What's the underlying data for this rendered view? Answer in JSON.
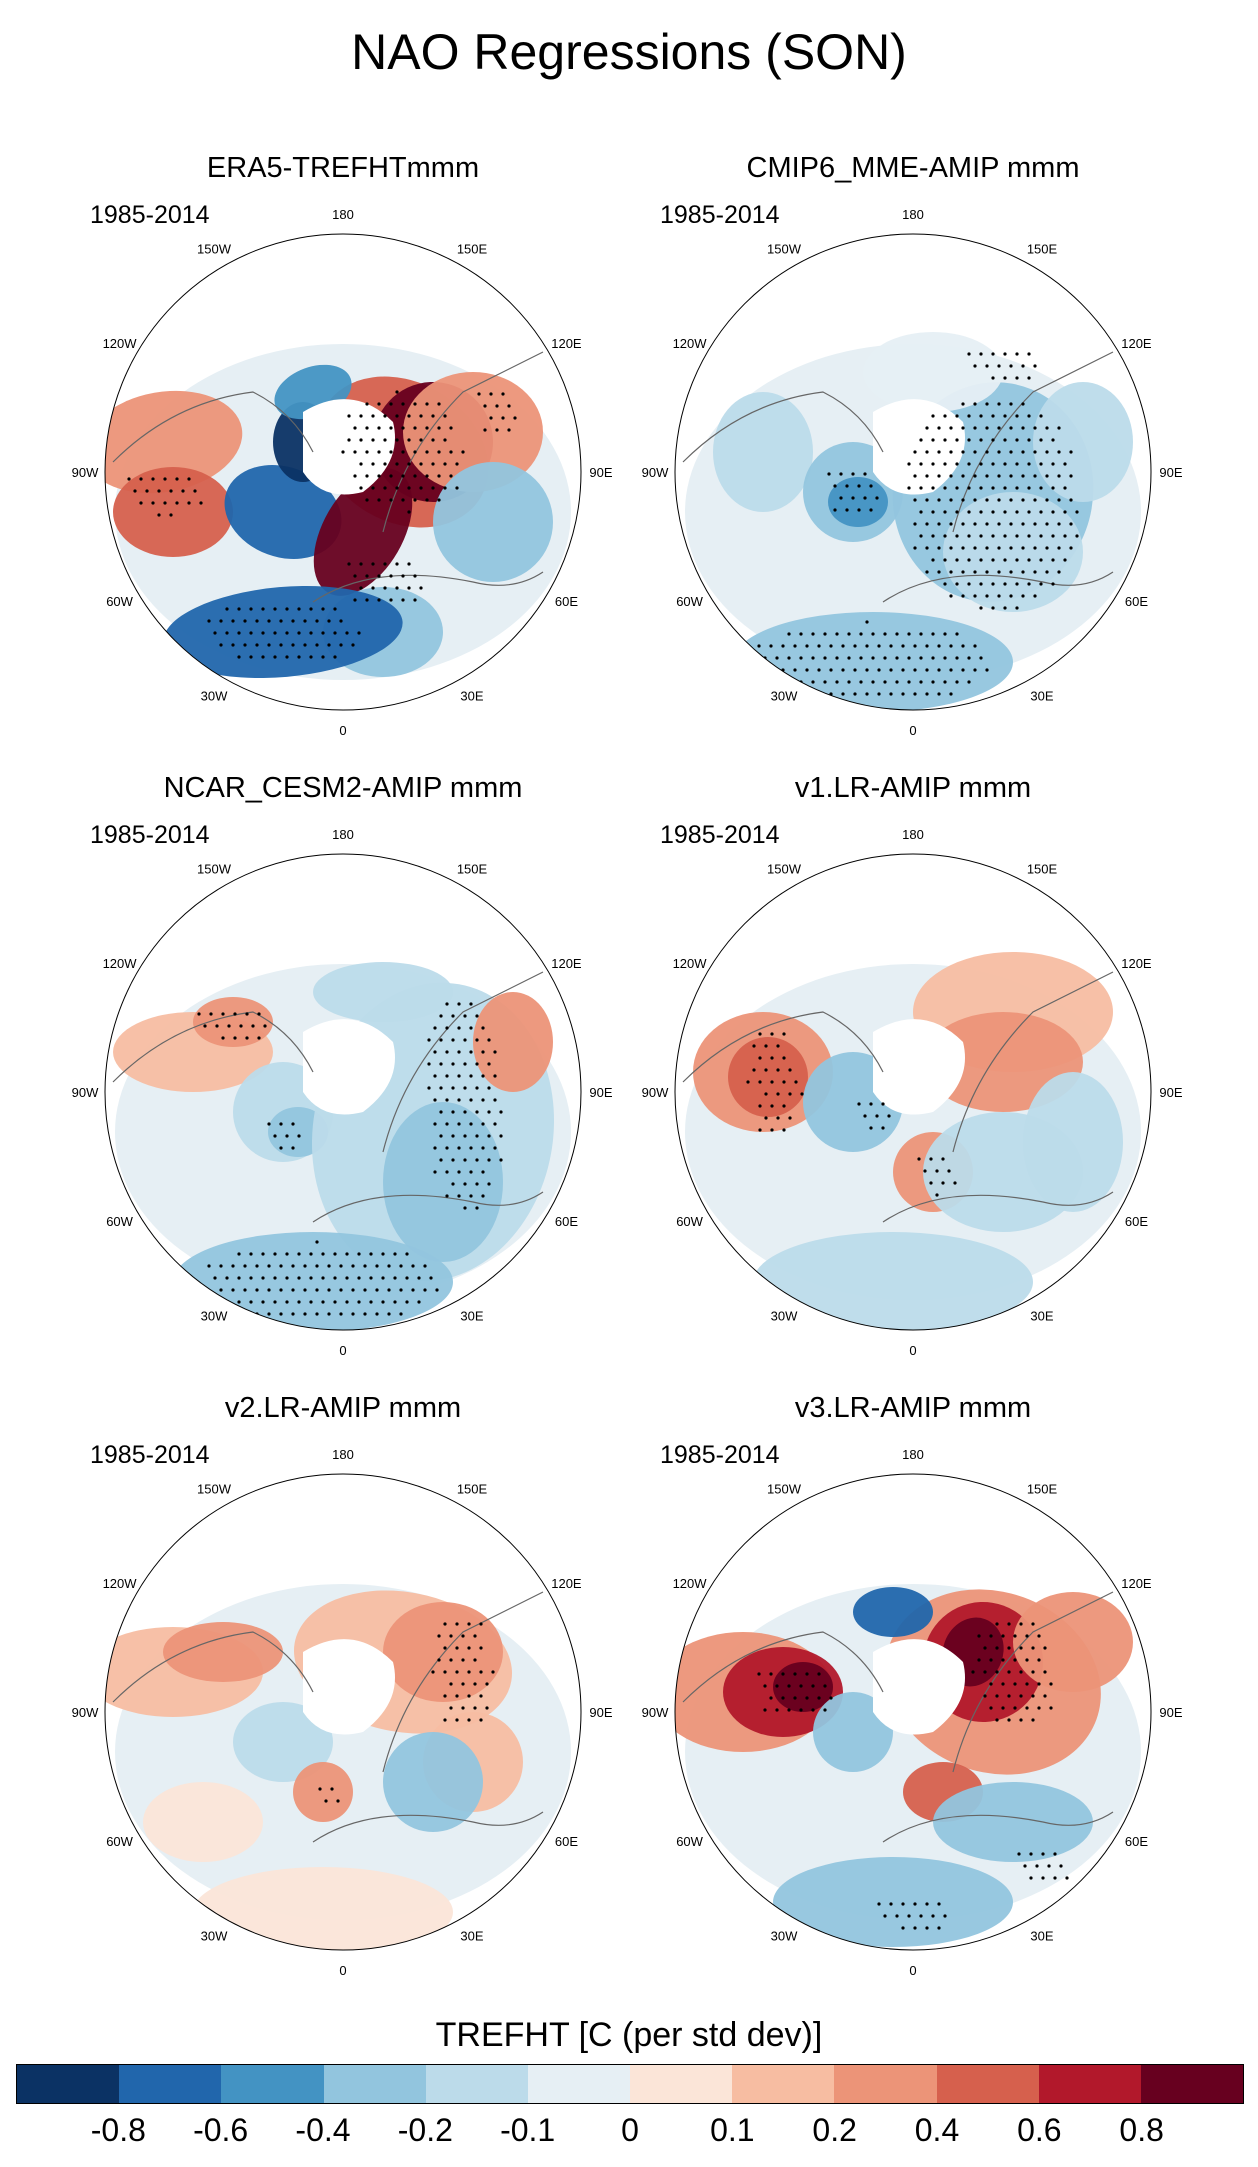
{
  "title": "NAO Regressions (SON)",
  "panels": [
    {
      "id": "era5",
      "title": "ERA5-TREFHTmmm",
      "period": "1985-2014"
    },
    {
      "id": "cmip6",
      "title": "CMIP6_MME-AMIP  mmm",
      "period": "1985-2014"
    },
    {
      "id": "cesm2",
      "title": "NCAR_CESM2-AMIP  mmm",
      "period": "1985-2014"
    },
    {
      "id": "v1",
      "title": "v1.LR-AMIP  mmm",
      "period": "1985-2014"
    },
    {
      "id": "v2",
      "title": "v2.LR-AMIP  mmm",
      "period": "1985-2014"
    },
    {
      "id": "v3",
      "title": "v3.LR-AMIP  mmm",
      "period": "1985-2014"
    }
  ],
  "longitude_labels": [
    "180",
    "150E",
    "120E",
    "90E",
    "60E",
    "30E",
    "0",
    "30W",
    "60W",
    "90W",
    "120W",
    "150W"
  ],
  "colorbar": {
    "title": "TREFHT [C (per std dev)]",
    "colors": [
      "#0b3264",
      "#2166ac",
      "#4393c3",
      "#92c5de",
      "#bcdbea",
      "#e6eff4",
      "#fbe5d8",
      "#f7bda2",
      "#ec9478",
      "#d6604d",
      "#b2182b",
      "#67001f"
    ],
    "tick_labels": [
      "-0.8",
      "-0.6",
      "-0.4",
      "-0.2",
      "-0.1",
      "0",
      "0.1",
      "0.2",
      "0.4",
      "0.6",
      "0.8"
    ]
  }
}
